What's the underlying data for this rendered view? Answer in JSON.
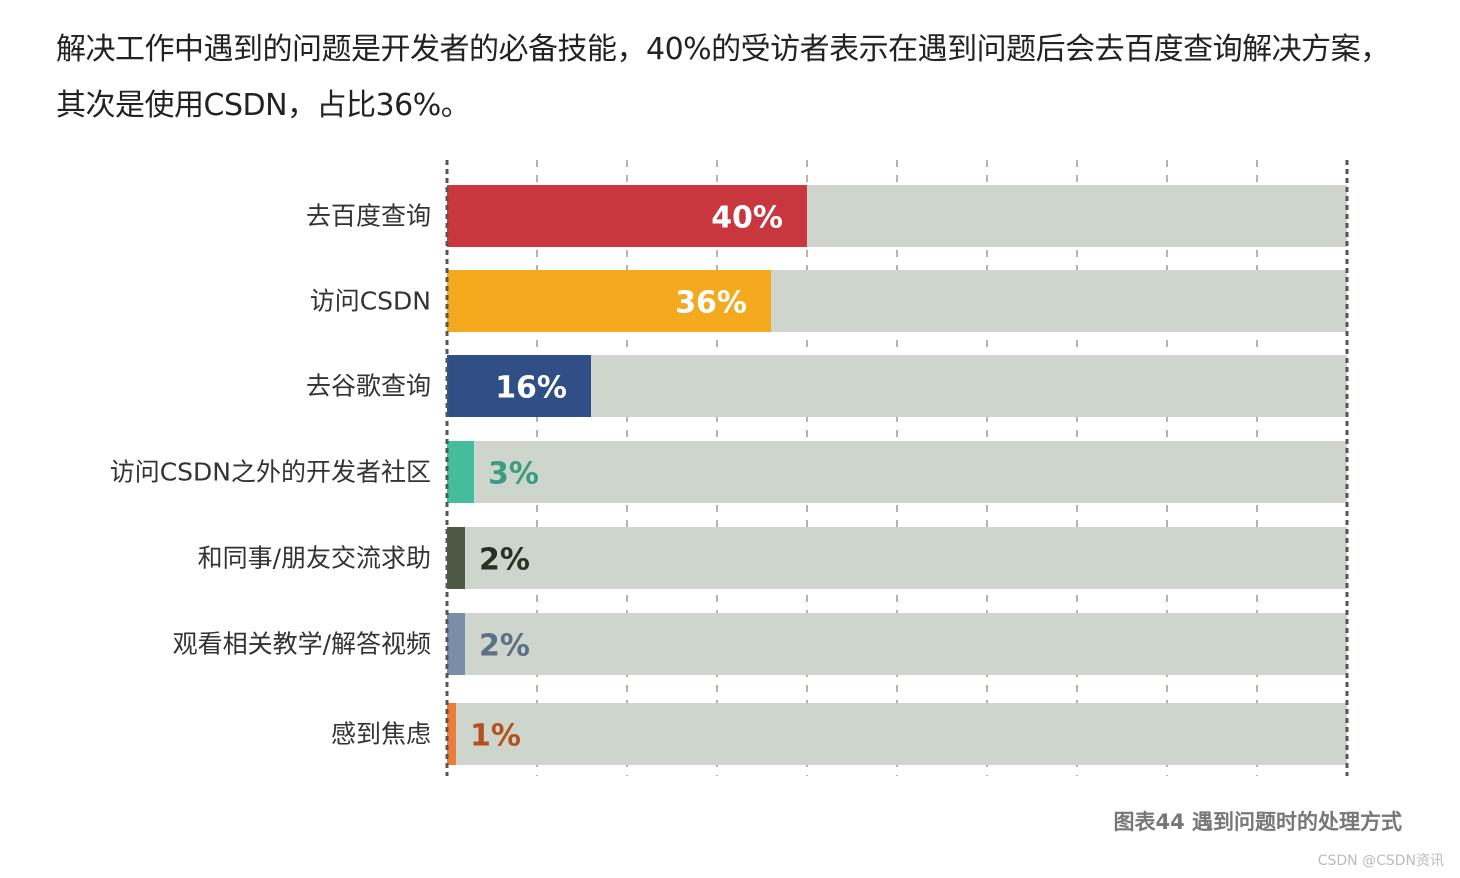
{
  "intro_text": "解决工作中遇到的问题是开发者的必备技能，40%的受访者表示在遇到问题后会去百度查询解决方案，其次是使用CSDN，占比36%。",
  "caption": "图表44 遇到问题时的处理方式",
  "watermark": "CSDN @CSDN资讯",
  "chart_data": {
    "type": "bar",
    "orientation": "horizontal",
    "title": "",
    "xlabel": "",
    "ylabel": "",
    "xlim": [
      0,
      100
    ],
    "grid": true,
    "track_color": "#cdd5cc",
    "categories": [
      "去百度查询",
      "访问CSDN",
      "去谷歌查询",
      "访问CSDN之外的开发者社区",
      "和同事/朋友交流求助",
      "观看相关教学/解答视频",
      "感到焦虑"
    ],
    "values": [
      40,
      36,
      16,
      3,
      2,
      2,
      1
    ],
    "value_labels": [
      "40%",
      "36%",
      "16%",
      "3%",
      "2%",
      "2%",
      "1%"
    ],
    "colors": [
      "#c8363e",
      "#f4a91f",
      "#2f4f86",
      "#45bc9c",
      "#4e5943",
      "#7b8ea9",
      "#ec7c3a"
    ],
    "label_colors": [
      "#ffffff",
      "#ffffff",
      "#ffffff",
      "#3a9c80",
      "#2b3122",
      "#5c7088",
      "#b3521e"
    ]
  }
}
